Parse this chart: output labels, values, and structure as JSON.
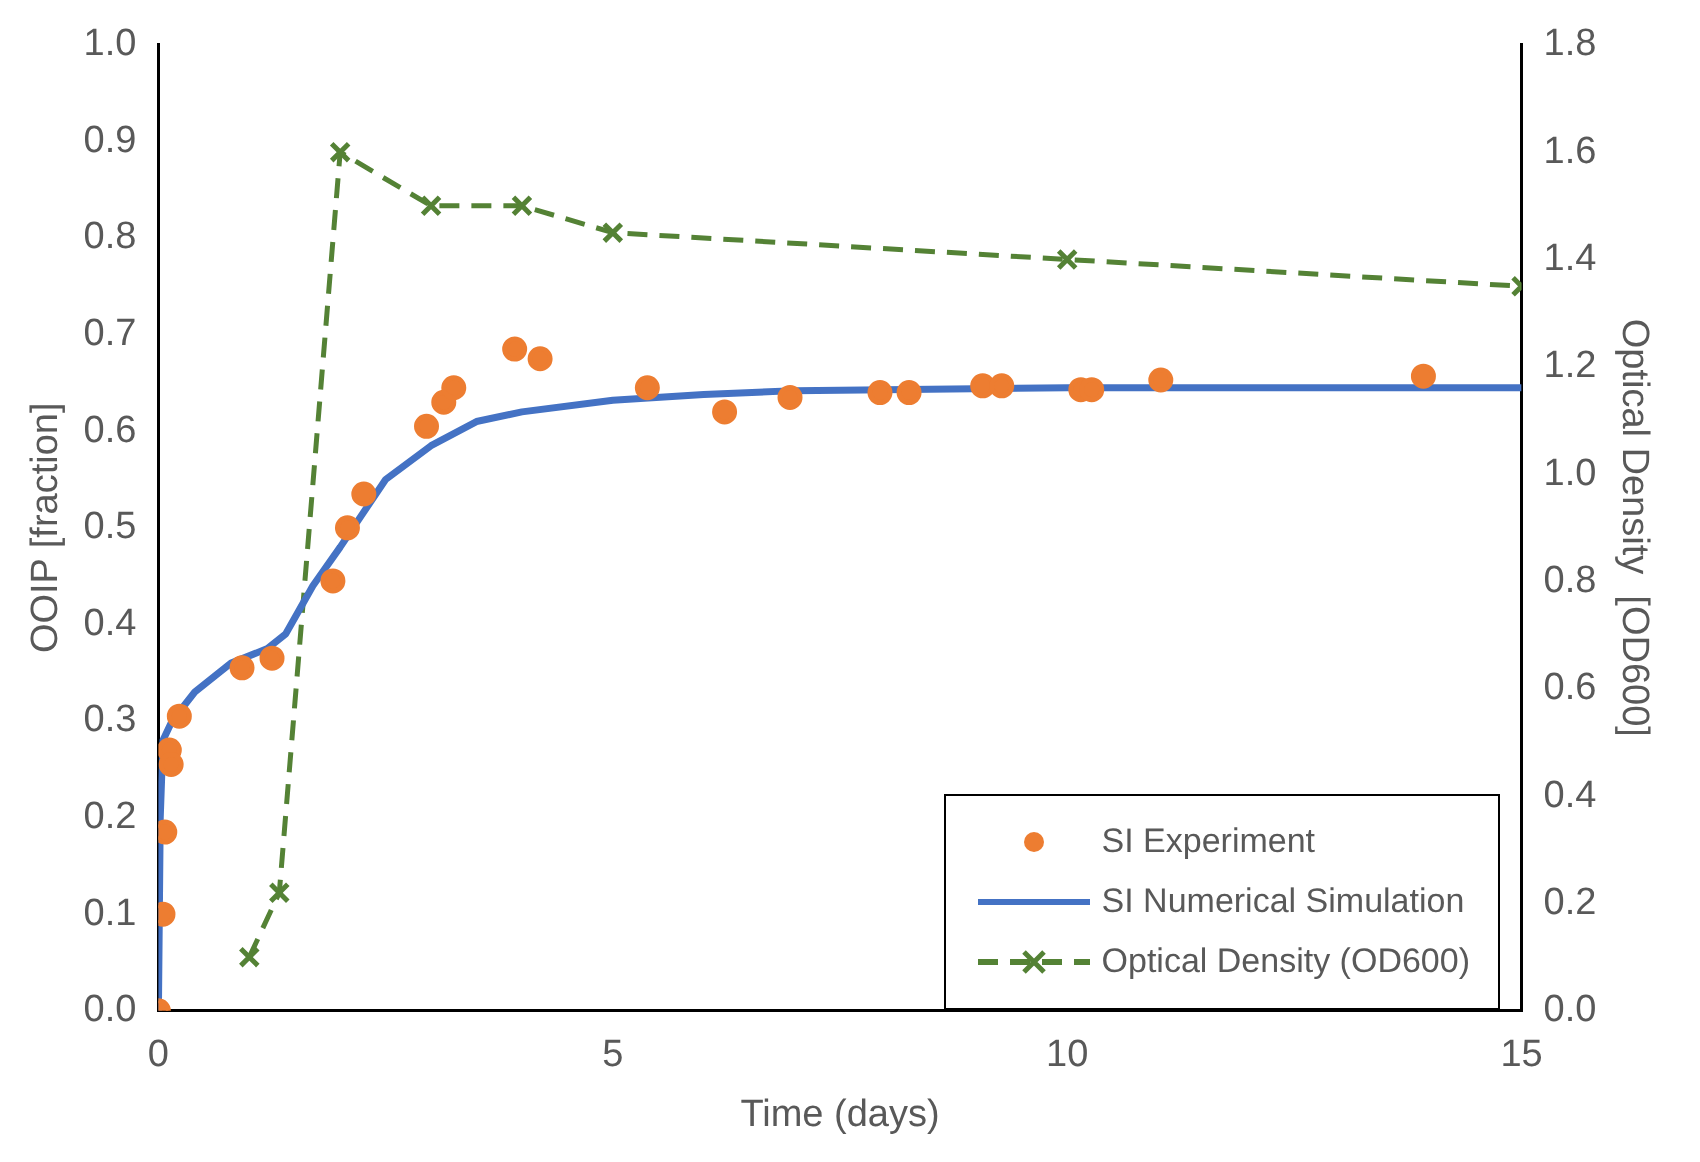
{
  "chart_data": {
    "type": "scatter",
    "xlabel": "Time (days)",
    "ylabel": "OOIP [fraction]",
    "y2label": "Optical Density  [OD600]",
    "xlim": [
      0,
      15
    ],
    "xticks": [
      0,
      5,
      10,
      15
    ],
    "ylim": [
      0,
      1
    ],
    "yticks": [
      {
        "value": 0,
        "label": "0.0"
      },
      {
        "value": 0.1,
        "label": "0.1"
      },
      {
        "value": 0.2,
        "label": "0.2"
      },
      {
        "value": 0.3,
        "label": "0.3"
      },
      {
        "value": 0.4,
        "label": "0.4"
      },
      {
        "value": 0.5,
        "label": "0.5"
      },
      {
        "value": 0.6,
        "label": "0.6"
      },
      {
        "value": 0.7,
        "label": "0.7"
      },
      {
        "value": 0.8,
        "label": "0.8"
      },
      {
        "value": 0.9,
        "label": "0.9"
      },
      {
        "value": 1,
        "label": "1.0"
      }
    ],
    "y2lim": [
      0,
      1.8
    ],
    "y2ticks": [
      {
        "value": 0,
        "label": "0.0"
      },
      {
        "value": 0.2,
        "label": "0.2"
      },
      {
        "value": 0.4,
        "label": "0.4"
      },
      {
        "value": 0.6,
        "label": "0.6"
      },
      {
        "value": 0.8,
        "label": "0.8"
      },
      {
        "value": 1,
        "label": "1.0"
      },
      {
        "value": 1.2,
        "label": "1.2"
      },
      {
        "value": 1.4,
        "label": "1.4"
      },
      {
        "value": 1.6,
        "label": "1.6"
      },
      {
        "value": 1.8,
        "label": "1.8"
      }
    ],
    "grid": false,
    "legend": "bottom right",
    "series": [
      {
        "name": "SI Experiment",
        "type": "scatter",
        "marker": "circle",
        "color": "#ed7d31",
        "x": [
          0,
          0.05,
          0.07,
          0.12,
          0.14,
          0.23,
          0.92,
          1.25,
          1.92,
          2.08,
          2.26,
          2.95,
          3.14,
          3.25,
          3.92,
          4.2,
          5.38,
          6.23,
          6.95,
          7.94,
          8.26,
          9.07,
          9.28,
          10.15,
          10.27,
          11.03,
          13.92
        ],
        "values": [
          0,
          0.1,
          0.185,
          0.27,
          0.255,
          0.305,
          0.355,
          0.365,
          0.445,
          0.5,
          0.535,
          0.605,
          0.63,
          0.645,
          0.685,
          0.675,
          0.645,
          0.62,
          0.635,
          0.64,
          0.64,
          0.647,
          0.647,
          0.643,
          0.643,
          0.653,
          0.657
        ]
      },
      {
        "name": "SI Numerical Simulation",
        "type": "line",
        "marker": "none",
        "line_style": "solid",
        "color": "#4472c4",
        "x": [
          0,
          0.02,
          0.05,
          0.15,
          0.4,
          0.8,
          1.2,
          1.4,
          1.7,
          2,
          2.5,
          3,
          3.5,
          4,
          5,
          6,
          7,
          8,
          10,
          15
        ],
        "values": [
          0,
          0.2,
          0.28,
          0.3,
          0.33,
          0.36,
          0.375,
          0.39,
          0.44,
          0.48,
          0.55,
          0.585,
          0.61,
          0.62,
          0.632,
          0.638,
          0.642,
          0.643,
          0.645,
          0.645
        ]
      },
      {
        "name": "Optical Density (OD600)",
        "type": "line",
        "axis": "y2",
        "marker": "cross",
        "line_style": "dashed",
        "color": "#548235",
        "x": [
          1,
          1.33,
          2,
          3,
          4,
          5,
          10,
          15
        ],
        "values": [
          0.1,
          0.22,
          1.6,
          1.5,
          1.5,
          1.45,
          1.4,
          1.35
        ]
      }
    ]
  }
}
